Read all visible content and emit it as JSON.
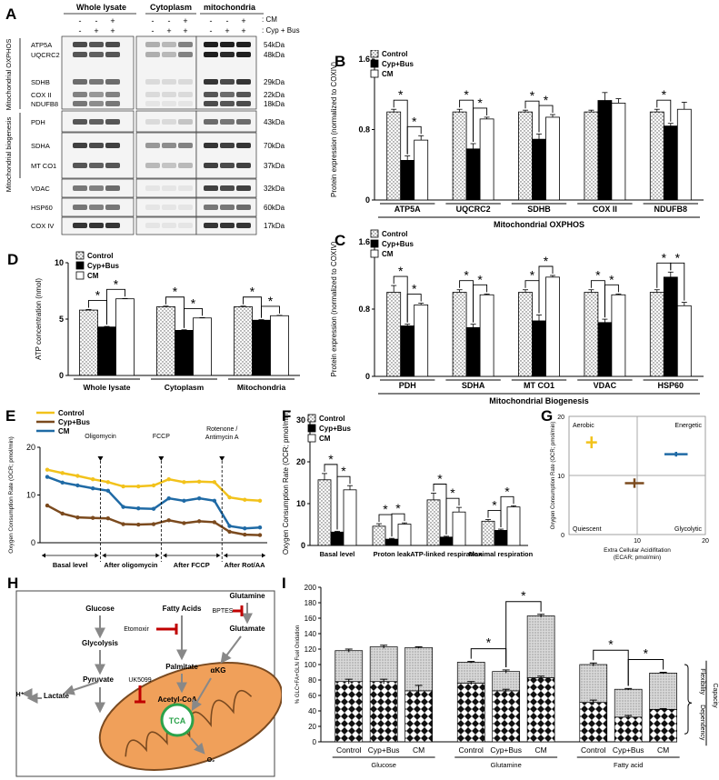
{
  "panels": {
    "A": "A",
    "B": "B",
    "C": "C",
    "D": "D",
    "E": "E",
    "F": "F",
    "G": "G",
    "H": "H",
    "I": "I"
  },
  "blot": {
    "groups": [
      "Whole lysate",
      "Cytoplasm",
      "mitochondria"
    ],
    "cm_row_label": ": CM",
    "cyp_row_label": ": Cyp + Bus",
    "cm_signs": [
      "-",
      "-",
      "+",
      "-",
      "-",
      "+",
      "-",
      "-",
      "+"
    ],
    "cyp_signs": [
      "-",
      "+",
      "+",
      "-",
      "+",
      "+",
      "-",
      "+",
      "+"
    ],
    "side_labels": [
      "Mitochondrial OXPHOS",
      "Mitochondrial biogenesis"
    ],
    "rows": [
      {
        "label": "ATP5A",
        "kda": "54kDa"
      },
      {
        "label": "UQCRC2",
        "kda": "48kDa"
      },
      {
        "label": "SDHB",
        "kda": "29kDa"
      },
      {
        "label": "COX II",
        "kda": "22kDa"
      },
      {
        "label": "NDUFB8",
        "kda": "18kDa"
      },
      {
        "label": "PDH",
        "kda": "43kDa"
      },
      {
        "label": "SDHA",
        "kda": "70kDa"
      },
      {
        "label": "MT CO1",
        "kda": "37kDa"
      },
      {
        "label": "VDAC",
        "kda": "32kDa"
      },
      {
        "label": "HSP60",
        "kda": "60kDa"
      },
      {
        "label": "COX IV",
        "kda": "17kDa"
      }
    ]
  },
  "legend3": [
    "Control",
    "Cyp+Bus",
    "CM"
  ],
  "colors": {
    "control": "#ffffff",
    "cyp": "#000000",
    "cm": "#ffffff",
    "yellow": "#f2c21b",
    "brown": "#7b4a1e",
    "blue": "#1f6aa5",
    "inhibit": "#c00000",
    "mito": "#f0a05a",
    "tca": "#2aa24a"
  },
  "chart_data": [
    {
      "id": "B",
      "type": "bar",
      "ylabel": "Protein expression (normalized to COXIV)",
      "ylim": [
        0,
        1.6
      ],
      "yticks": [
        "0",
        "0.8",
        "1.6"
      ],
      "categories": [
        "ATP5A",
        "UQCRC2",
        "SDHB",
        "COX II",
        "NDUFB8"
      ],
      "group_label": "Mitochondrial  OXPHOS",
      "series": [
        {
          "name": "Control",
          "values": [
            1.0,
            1.0,
            1.0,
            1.0,
            1.0
          ],
          "err": [
            0.03,
            0.03,
            0.02,
            0.02,
            0.03
          ]
        },
        {
          "name": "Cyp+Bus",
          "values": [
            0.45,
            0.58,
            0.69,
            1.13,
            0.84
          ],
          "err": [
            0.05,
            0.06,
            0.06,
            0.09,
            0.03
          ]
        },
        {
          "name": "CM",
          "values": [
            0.68,
            0.92,
            0.94,
            1.1,
            1.03
          ],
          "err": [
            0.05,
            0.02,
            0.03,
            0.05,
            0.08
          ]
        }
      ],
      "stars": [
        [
          0,
          0,
          1
        ],
        [
          0,
          1,
          2
        ],
        [
          1,
          0,
          1
        ],
        [
          1,
          1,
          2
        ],
        [
          2,
          0,
          1
        ],
        [
          2,
          1,
          2
        ],
        [
          4,
          0,
          1
        ]
      ],
      "star": "*"
    },
    {
      "id": "C",
      "type": "bar",
      "ylabel": "Protein expression (normalized to COXIV)",
      "ylim": [
        0,
        1.6
      ],
      "yticks": [
        "0",
        "0.8",
        "1.6"
      ],
      "categories": [
        "PDH",
        "SDHA",
        "MT CO1",
        "VDAC",
        "HSP60"
      ],
      "group_label": "Mitochondrial  Biogenesis",
      "series": [
        {
          "name": "Control",
          "values": [
            1.0,
            1.0,
            1.0,
            1.0,
            1.0
          ],
          "err": [
            0.08,
            0.03,
            0.03,
            0.03,
            0.03
          ]
        },
        {
          "name": "Cyp+Bus",
          "values": [
            0.6,
            0.58,
            0.66,
            0.64,
            1.18
          ],
          "err": [
            0.02,
            0.04,
            0.07,
            0.04,
            0.06
          ]
        },
        {
          "name": "CM",
          "values": [
            0.85,
            0.97,
            1.18,
            0.97,
            0.84
          ],
          "err": [
            0.02,
            0.01,
            0.02,
            0.01,
            0.04
          ]
        }
      ],
      "stars": [
        [
          0,
          0,
          1
        ],
        [
          0,
          1,
          2
        ],
        [
          1,
          0,
          1
        ],
        [
          1,
          1,
          2
        ],
        [
          2,
          0,
          1
        ],
        [
          2,
          1,
          2
        ],
        [
          3,
          0,
          1
        ],
        [
          3,
          1,
          2
        ],
        [
          4,
          0,
          1
        ],
        [
          4,
          1,
          2
        ]
      ],
      "star": "*"
    },
    {
      "id": "D",
      "type": "bar",
      "ylabel": "ATP concentration (nmol)",
      "ylim": [
        0,
        10
      ],
      "yticks": [
        "0",
        "5",
        "10"
      ],
      "categories": [
        "Whole lysate",
        "Cytoplasm",
        "Mitochondria"
      ],
      "series": [
        {
          "name": "Control",
          "values": [
            5.8,
            6.1,
            6.1
          ],
          "err": [
            0.05,
            0.05,
            0.05
          ]
        },
        {
          "name": "Cyp+Bus",
          "values": [
            4.3,
            4.0,
            4.9
          ],
          "err": [
            0.05,
            0.05,
            0.05
          ]
        },
        {
          "name": "CM",
          "values": [
            6.8,
            5.1,
            5.3
          ],
          "err": [
            0.03,
            0.03,
            0.03
          ]
        }
      ],
      "stars": [
        [
          0,
          0,
          1
        ],
        [
          0,
          1,
          2
        ],
        [
          1,
          0,
          1
        ],
        [
          1,
          1,
          2
        ],
        [
          2,
          0,
          1
        ],
        [
          2,
          1,
          2
        ]
      ],
      "star": "*"
    },
    {
      "id": "E",
      "type": "line",
      "ylabel": "Oxygen Consumption Rate (OCR; pmol/min)",
      "ylim": [
        0,
        20
      ],
      "yticks": [
        "0",
        "10",
        "20"
      ],
      "x": [
        1,
        2,
        3,
        4,
        5,
        6,
        7,
        8,
        9,
        10,
        11,
        12,
        13,
        14,
        15
      ],
      "series": [
        {
          "name": "Control",
          "color": "yellow",
          "values": [
            15.3,
            14.6,
            14.0,
            13.3,
            12.7,
            11.8,
            11.8,
            12.0,
            13.3,
            12.7,
            12.8,
            12.7,
            9.5,
            9.0,
            8.8
          ]
        },
        {
          "name": "Cyp+Bus",
          "color": "brown",
          "values": [
            7.8,
            6.1,
            5.3,
            5.2,
            5.1,
            3.9,
            3.8,
            3.9,
            4.7,
            4.1,
            4.5,
            4.3,
            2.3,
            1.7,
            1.6
          ]
        },
        {
          "name": "CM",
          "color": "blue",
          "values": [
            13.8,
            12.6,
            12.0,
            11.4,
            10.9,
            7.5,
            7.2,
            7.1,
            9.3,
            8.8,
            9.3,
            8.8,
            3.5,
            3.0,
            3.2
          ]
        }
      ],
      "arrows": [
        {
          "label": "Oligomycin",
          "after": 4.5
        },
        {
          "label": "FCCP",
          "after": 8.5
        },
        {
          "label": "Rotenone / Antimycin A",
          "after": 12.5
        }
      ],
      "phases": [
        "Basal level",
        "After oligomycin",
        "After FCCP",
        "After Rot/AA"
      ]
    },
    {
      "id": "F",
      "type": "bar",
      "ylabel": "Oxygen Consumption Rate (OCR; pmol/min)",
      "ylim": [
        0,
        30
      ],
      "yticks": [
        "0",
        "10",
        "20",
        "30"
      ],
      "categories": [
        "Basal level",
        "Proton leak",
        "ATP-linked respiration",
        "Maximal respiration"
      ],
      "series": [
        {
          "name": "Control",
          "values": [
            15.7,
            4.6,
            10.9,
            5.8
          ],
          "err": [
            1.5,
            0.6,
            1.6,
            0.4
          ]
        },
        {
          "name": "Cyp+Bus",
          "values": [
            3.2,
            1.5,
            2.0,
            3.6
          ],
          "err": [
            0.2,
            0.2,
            0.2,
            0.3
          ]
        },
        {
          "name": "CM",
          "values": [
            13.3,
            5.1,
            8.0,
            9.2
          ],
          "err": [
            1.0,
            0.3,
            1.1,
            0.3
          ]
        }
      ],
      "stars": [
        [
          0,
          0,
          1
        ],
        [
          0,
          1,
          2
        ],
        [
          1,
          0,
          1
        ],
        [
          1,
          1,
          2
        ],
        [
          2,
          0,
          1
        ],
        [
          2,
          1,
          2
        ],
        [
          3,
          0,
          1
        ],
        [
          3,
          1,
          2
        ]
      ],
      "star": "*"
    },
    {
      "id": "G",
      "type": "scatter",
      "xlabel": "Extra Cellular Acidifitation (ECAR; pmol/min)",
      "ylabel": "Oxygen Consumption Rate (OCR; pmol/min)",
      "xlim": [
        0,
        20
      ],
      "ylim": [
        0,
        20
      ],
      "xticks": [
        "10",
        "20"
      ],
      "yticks": [
        "0",
        "10",
        "20"
      ],
      "quadrants": [
        "Aerobic",
        "Energetic",
        "Quiescent",
        "Glycolytic"
      ],
      "points": [
        {
          "color": "yellow",
          "x": 3.3,
          "y": 15.6,
          "ex": 0.8,
          "ey": 1.0
        },
        {
          "color": "brown",
          "x": 9.6,
          "y": 8.7,
          "ex": 1.4,
          "ey": 0.8
        },
        {
          "color": "blue",
          "x": 15.7,
          "y": 13.6,
          "ex": 1.7,
          "ey": 0.4
        }
      ]
    },
    {
      "id": "I",
      "type": "bar",
      "ylabel": "% GLC+FA+GLN Fuel Oxidation",
      "ylim": [
        0,
        200
      ],
      "yticks": [
        "0",
        "20",
        "40",
        "60",
        "80",
        "100",
        "120",
        "140",
        "160",
        "180",
        "200"
      ],
      "categories": [
        "Control",
        "Cyp+Bus",
        "CM",
        "Control",
        "Cyp+Bus",
        "CM",
        "Control",
        "Cyp+Bus",
        "CM"
      ],
      "groups": [
        "Glucose",
        "Glutamine",
        "Fatty acid"
      ],
      "series": [
        {
          "name": "Dependency",
          "values": [
            78,
            78,
            66,
            76,
            66,
            83,
            51,
            32,
            42
          ],
          "err": [
            3,
            3,
            7,
            2,
            2,
            2,
            3,
            2,
            1
          ]
        },
        {
          "name": "Flexibility",
          "values": [
            40,
            45,
            56,
            27,
            25,
            80,
            49,
            36,
            47
          ],
          "err": [
            2,
            2,
            1,
            1,
            2,
            2,
            2,
            1,
            1
          ]
        }
      ],
      "side_labels": {
        "flex": "Flexibility",
        "dep": "Dependency",
        "cap": "Capacity"
      },
      "stars": [
        [
          3,
          4
        ],
        [
          4,
          5
        ],
        [
          6,
          7
        ],
        [
          7,
          8
        ]
      ],
      "star": "*"
    }
  ],
  "pathway": {
    "glucose": "Glucose",
    "glycolysis": "Glycolysis",
    "pyruvate": "Pyruvate",
    "lactate": "Lactate",
    "h": "H⁺",
    "fatty_acids": "Fatty Acids",
    "palmitate": "Palmitate",
    "acetyl": "Acetyl-CoA",
    "tca": "TCA",
    "glutamine": "Glutamine",
    "glutamate": "Glutamate",
    "akg": "αKG",
    "o2": "O₂",
    "etomoxir": "Etomoxir",
    "bptes": "BPTES",
    "uk": "UK5099"
  }
}
